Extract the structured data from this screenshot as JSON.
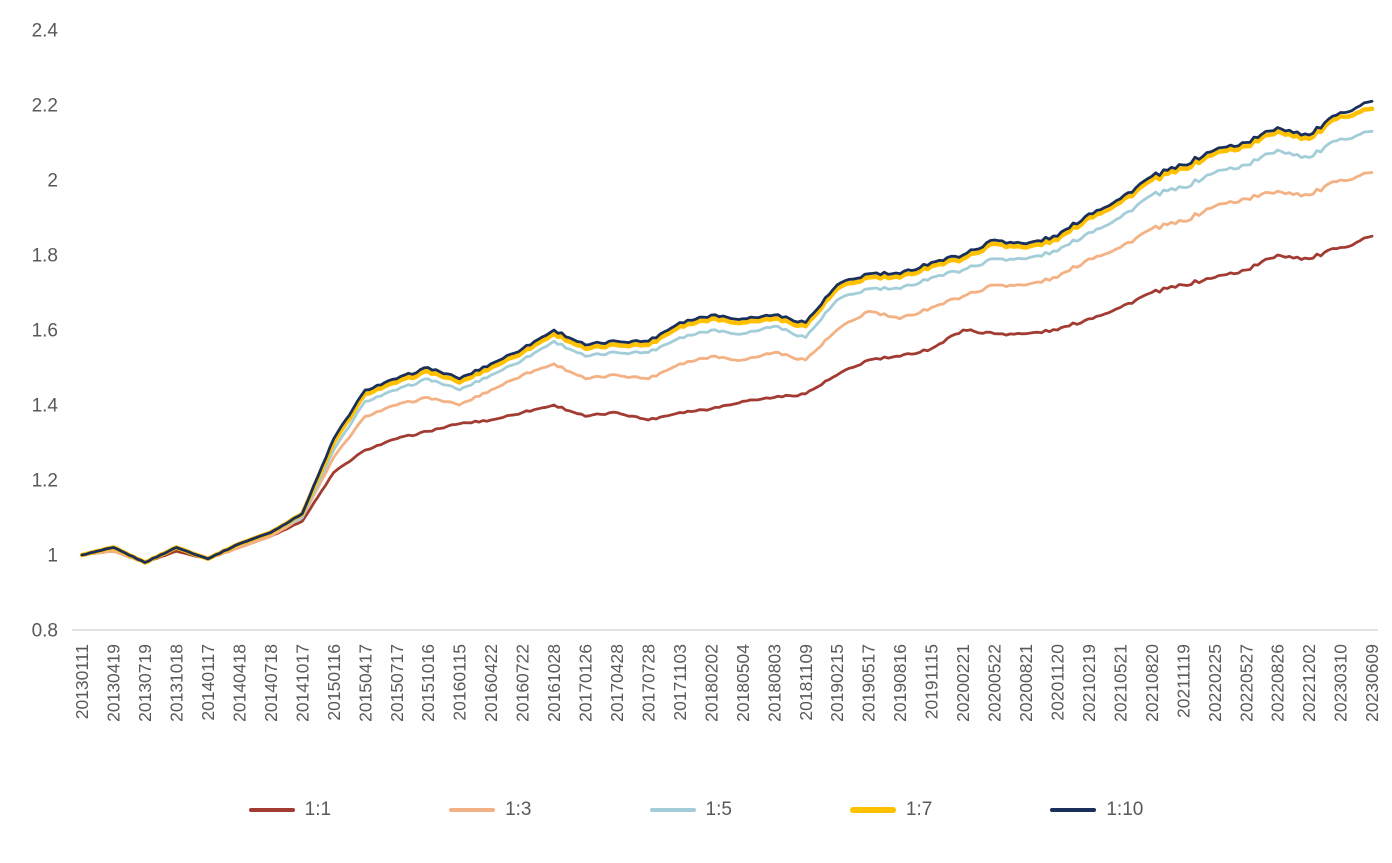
{
  "chart_data": {
    "type": "line",
    "title": "",
    "xlabel": "",
    "ylabel": "",
    "ylim": [
      0.8,
      2.4
    ],
    "y_ticks": [
      "0.8",
      "1",
      "1.2",
      "1.4",
      "1.6",
      "1.8",
      "2",
      "2.2",
      "2.4"
    ],
    "y_tick_values": [
      0.8,
      1.0,
      1.2,
      1.4,
      1.6,
      1.8,
      2.0,
      2.2,
      2.4
    ],
    "grid": false,
    "legend_position": "bottom",
    "axis_color": "#d9d9d9",
    "tick_label_color": "#595959",
    "categories": [
      "20130111",
      "20130419",
      "20130719",
      "20131018",
      "20140117",
      "20140418",
      "20140718",
      "20141017",
      "20150116",
      "20150417",
      "20150717",
      "20151016",
      "20160115",
      "20160422",
      "20160722",
      "20161028",
      "20170126",
      "20170428",
      "20170728",
      "20171103",
      "20180202",
      "20180504",
      "20180803",
      "20181109",
      "20190215",
      "20190517",
      "20190816",
      "20191115",
      "20200221",
      "20200522",
      "20200821",
      "20201120",
      "20210219",
      "20210521",
      "20210820",
      "20211119",
      "20220225",
      "20220527",
      "20220826",
      "20221202",
      "20230310",
      "20230609"
    ],
    "series": [
      {
        "name": "1:1",
        "color": "#a23b32",
        "values": [
          1.0,
          1.01,
          0.98,
          1.01,
          0.99,
          1.02,
          1.05,
          1.09,
          1.22,
          1.28,
          1.31,
          1.33,
          1.35,
          1.36,
          1.38,
          1.4,
          1.37,
          1.38,
          1.36,
          1.38,
          1.39,
          1.41,
          1.42,
          1.43,
          1.48,
          1.52,
          1.53,
          1.55,
          1.6,
          1.59,
          1.59,
          1.6,
          1.63,
          1.66,
          1.7,
          1.72,
          1.74,
          1.76,
          1.8,
          1.79,
          1.82,
          1.85
        ]
      },
      {
        "name": "1:3",
        "color": "#f4b183",
        "values": [
          1.0,
          1.01,
          0.98,
          1.02,
          0.99,
          1.02,
          1.05,
          1.1,
          1.26,
          1.37,
          1.4,
          1.42,
          1.4,
          1.44,
          1.48,
          1.51,
          1.47,
          1.48,
          1.47,
          1.51,
          1.53,
          1.52,
          1.54,
          1.52,
          1.6,
          1.65,
          1.63,
          1.66,
          1.69,
          1.72,
          1.72,
          1.74,
          1.79,
          1.82,
          1.87,
          1.89,
          1.93,
          1.95,
          1.97,
          1.96,
          2.0,
          2.02
        ]
      },
      {
        "name": "1:5",
        "color": "#a3cdd8",
        "values": [
          1.0,
          1.02,
          0.98,
          1.02,
          0.99,
          1.03,
          1.06,
          1.1,
          1.28,
          1.41,
          1.44,
          1.47,
          1.44,
          1.48,
          1.52,
          1.57,
          1.53,
          1.54,
          1.54,
          1.58,
          1.6,
          1.59,
          1.61,
          1.58,
          1.68,
          1.71,
          1.71,
          1.74,
          1.76,
          1.79,
          1.79,
          1.81,
          1.86,
          1.9,
          1.96,
          1.98,
          2.02,
          2.04,
          2.08,
          2.06,
          2.11,
          2.13
        ]
      },
      {
        "name": "1:7",
        "color": "#ffc000",
        "values": [
          1.0,
          1.02,
          0.98,
          1.02,
          0.99,
          1.03,
          1.06,
          1.11,
          1.3,
          1.43,
          1.46,
          1.49,
          1.46,
          1.5,
          1.54,
          1.59,
          1.55,
          1.56,
          1.56,
          1.61,
          1.63,
          1.62,
          1.63,
          1.61,
          1.71,
          1.74,
          1.74,
          1.77,
          1.79,
          1.83,
          1.82,
          1.84,
          1.9,
          1.94,
          2.0,
          2.03,
          2.07,
          2.09,
          2.13,
          2.11,
          2.17,
          2.19
        ]
      },
      {
        "name": "1:10",
        "color": "#1a2f5a",
        "values": [
          1.0,
          1.02,
          0.98,
          1.02,
          0.99,
          1.03,
          1.06,
          1.11,
          1.31,
          1.44,
          1.47,
          1.5,
          1.47,
          1.51,
          1.55,
          1.6,
          1.56,
          1.57,
          1.57,
          1.62,
          1.64,
          1.63,
          1.64,
          1.62,
          1.72,
          1.75,
          1.75,
          1.78,
          1.8,
          1.84,
          1.83,
          1.85,
          1.91,
          1.95,
          2.01,
          2.04,
          2.08,
          2.1,
          2.14,
          2.12,
          2.18,
          2.21
        ]
      }
    ]
  }
}
